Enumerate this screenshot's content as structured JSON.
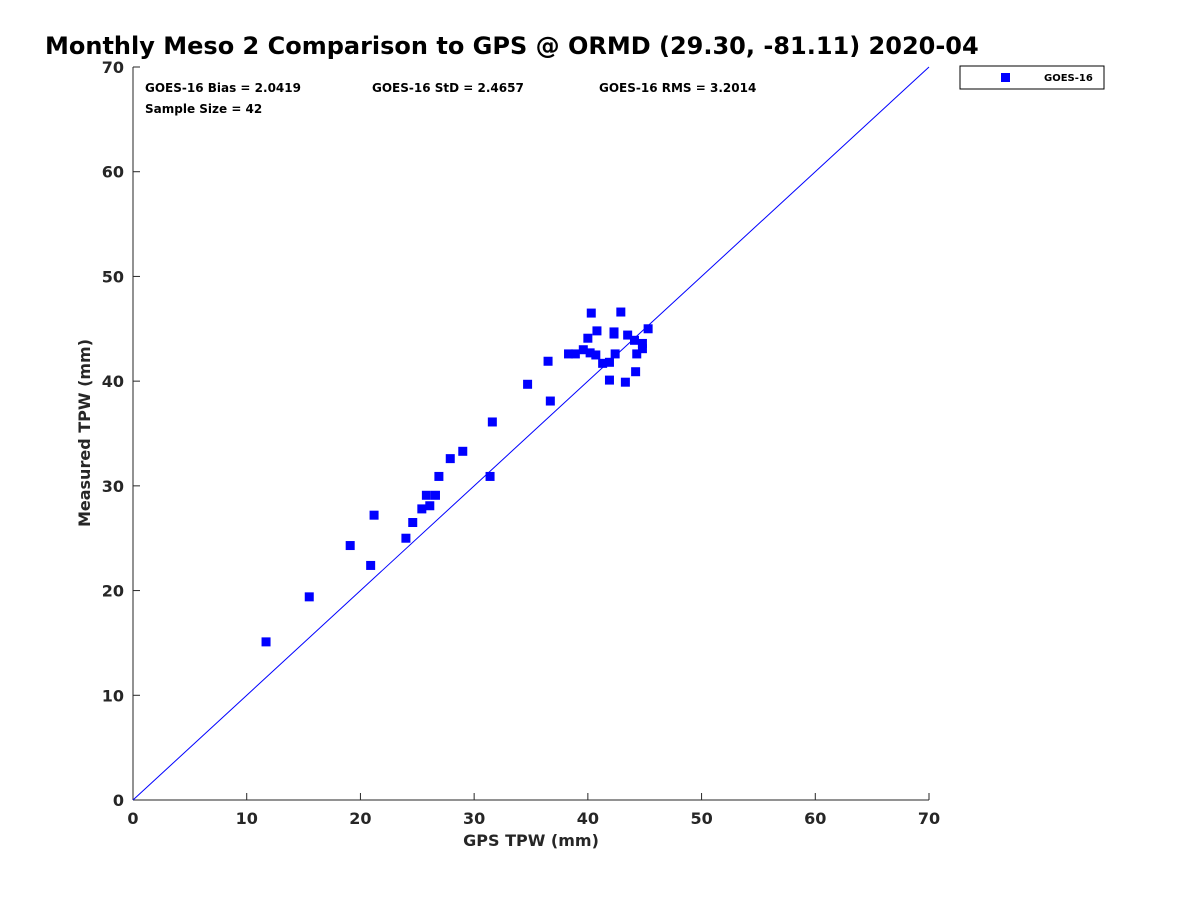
{
  "chart_data": {
    "type": "scatter",
    "title": "Monthly Meso 2 Comparison to GPS @ ORMD (29.30, -81.11) 2020-04",
    "xlabel": "GPS TPW (mm)",
    "ylabel": "Measured TPW (mm)",
    "xlim": [
      0,
      70
    ],
    "ylim": [
      0,
      70
    ],
    "xticks": [
      "0",
      "10",
      "20",
      "30",
      "40",
      "50",
      "60",
      "70"
    ],
    "yticks": [
      "0",
      "10",
      "20",
      "30",
      "40",
      "50",
      "60",
      "70"
    ],
    "grid": false,
    "legend_position": "top-right-outside",
    "reference_line": {
      "name": "1:1 line",
      "x": [
        0,
        70
      ],
      "y": [
        0,
        70
      ]
    },
    "stats": {
      "bias": "GOES-16 Bias = 2.0419",
      "std": "GOES-16 StD = 2.4657",
      "rms": "GOES-16 RMS = 3.2014",
      "sample_size": "Sample Size = 42"
    },
    "series": [
      {
        "name": "GOES-16",
        "color": "#0000ff",
        "marker": "square",
        "points": [
          [
            11.7,
            15.1
          ],
          [
            15.5,
            19.4
          ],
          [
            19.1,
            24.3
          ],
          [
            20.9,
            22.4
          ],
          [
            21.2,
            27.2
          ],
          [
            24.0,
            25.0
          ],
          [
            24.6,
            26.5
          ],
          [
            25.4,
            27.8
          ],
          [
            25.8,
            29.1
          ],
          [
            26.1,
            28.1
          ],
          [
            26.6,
            29.1
          ],
          [
            26.9,
            30.9
          ],
          [
            27.9,
            32.6
          ],
          [
            29.0,
            33.3
          ],
          [
            31.4,
            30.9
          ],
          [
            31.6,
            36.1
          ],
          [
            34.7,
            39.7
          ],
          [
            36.5,
            41.9
          ],
          [
            36.7,
            38.1
          ],
          [
            38.3,
            42.6
          ],
          [
            38.9,
            42.6
          ],
          [
            39.6,
            43.0
          ],
          [
            40.0,
            44.1
          ],
          [
            40.2,
            42.7
          ],
          [
            40.3,
            46.5
          ],
          [
            40.7,
            42.5
          ],
          [
            40.8,
            44.8
          ],
          [
            41.3,
            41.7
          ],
          [
            41.9,
            40.1
          ],
          [
            41.9,
            41.8
          ],
          [
            42.3,
            44.5
          ],
          [
            42.3,
            44.7
          ],
          [
            42.4,
            42.6
          ],
          [
            42.9,
            46.6
          ],
          [
            43.3,
            39.9
          ],
          [
            43.5,
            44.4
          ],
          [
            44.1,
            43.9
          ],
          [
            44.2,
            40.9
          ],
          [
            44.3,
            42.6
          ],
          [
            44.8,
            43.1
          ],
          [
            44.8,
            43.6
          ],
          [
            45.3,
            45.0
          ]
        ]
      }
    ]
  }
}
